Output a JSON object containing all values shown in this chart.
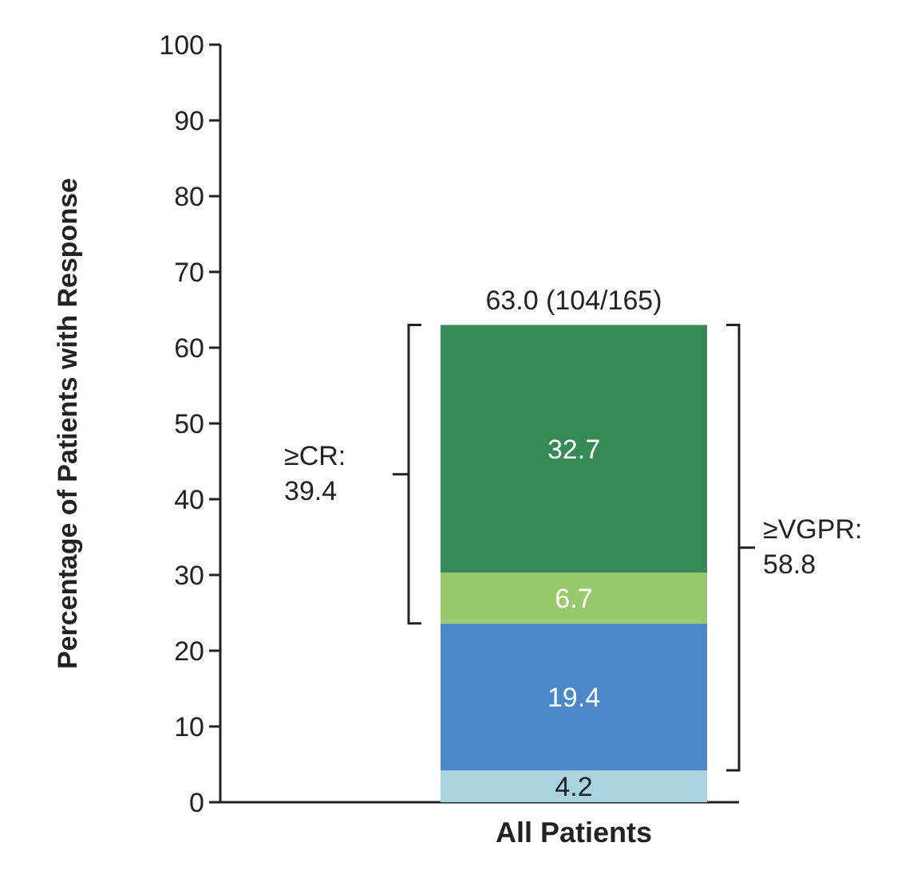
{
  "chart_data": {
    "type": "bar",
    "stacked": true,
    "ylabel": "Percentage of Patients with Response",
    "categories": [
      "All Patients"
    ],
    "series": [
      {
        "color": "#a9d3de",
        "values": [
          4.2
        ]
      },
      {
        "color": "#4a88c9",
        "values": [
          19.4
        ]
      },
      {
        "color": "#98c96c",
        "values": [
          6.7
        ]
      },
      {
        "color": "#378a55",
        "values": [
          32.7
        ]
      }
    ],
    "ylim": [
      0,
      100
    ],
    "yticks": [
      0,
      10,
      20,
      30,
      40,
      50,
      60,
      70,
      80,
      90,
      100
    ],
    "data_labels": true,
    "totals": [
      "63.0 (104/165)"
    ],
    "annotations": [
      "≥CR: 39.4",
      "≥VGPR: 58.8"
    ]
  }
}
